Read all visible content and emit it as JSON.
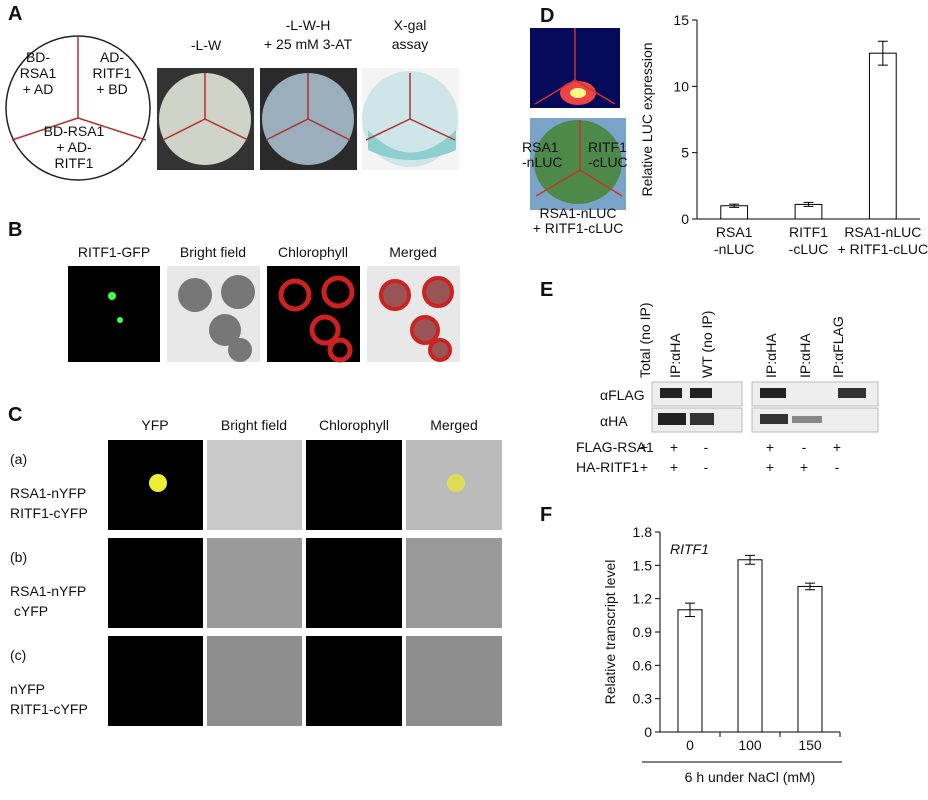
{
  "panel_a": {
    "label": "A",
    "diagram": [
      "BD-\nRSA1\n+ AD",
      "AD-\nRITF1\n+ BD",
      "BD-RSA1\n+ AD-\nRITF1"
    ],
    "headers": [
      "-L-W",
      "-L-W-H\n+ 25 mM 3-AT",
      "X-gal\nassay"
    ]
  },
  "panel_b": {
    "label": "B",
    "headers": [
      "RITF1-GFP",
      "Bright field",
      "Chlorophyll",
      "Merged"
    ]
  },
  "panel_c": {
    "label": "C",
    "headers": [
      "YFP",
      "Bright field",
      "Chlorophyll",
      "Merged"
    ],
    "rows": [
      {
        "id": "(a)",
        "text": "RSA1-nYFP\nRITF1-cYFP"
      },
      {
        "id": "(b)",
        "text": "RSA1-nYFP\n cYFP"
      },
      {
        "id": "(c)",
        "text": "nYFP\nRITF1-cYFP"
      }
    ]
  },
  "panel_d": {
    "label": "D",
    "leaf": [
      "RSA1\n-nLUC",
      "RITF1\n-cLUC",
      "RSA1-nLUC\n+ RITF1-cLUC"
    ]
  },
  "panel_e": {
    "label": "E",
    "columns": [
      "Total (no IP)",
      "IP:αHA",
      "WT (no IP)",
      "IP:αHA",
      "IP:αHA",
      "IP:αFLAG"
    ],
    "blots": [
      "αFLAG",
      "αHA"
    ],
    "genotypes": [
      {
        "name": "FLAG-RSA1",
        "signs": [
          "+",
          "+",
          "-",
          "+",
          "-",
          "+"
        ]
      },
      {
        "name": "HA-RITF1",
        "signs": [
          "+",
          "+",
          "-",
          "+",
          "+",
          "-"
        ]
      }
    ]
  },
  "panel_f": {
    "label": "F"
  },
  "chart_data": [
    {
      "type": "bar",
      "ylabel": "Relative LUC expression",
      "categories": [
        "RSA1\n-nLUC",
        "RITF1\n-cLUC",
        "RSA1-nLUC\n+ RITF1-cLUC"
      ],
      "values": [
        1,
        1.1,
        12.5
      ],
      "errors": [
        0.12,
        0.15,
        0.9
      ],
      "color": "#ffffff",
      "ylim": [
        0,
        15
      ],
      "yticks": [
        0,
        5,
        10,
        15
      ]
    },
    {
      "type": "bar",
      "ylabel": "Relative transcript level",
      "xlabel": "6 h under NaCl (mM)",
      "annotation": "RITF1",
      "categories": [
        "0",
        "100",
        "150"
      ],
      "values": [
        1.1,
        1.55,
        1.31
      ],
      "errors": [
        0.06,
        0.04,
        0.03
      ],
      "color": "#ffffff",
      "ylim": [
        0,
        1.8
      ],
      "yticks": [
        0,
        0.3,
        0.6,
        0.9,
        1.2,
        1.5,
        1.8
      ]
    }
  ]
}
